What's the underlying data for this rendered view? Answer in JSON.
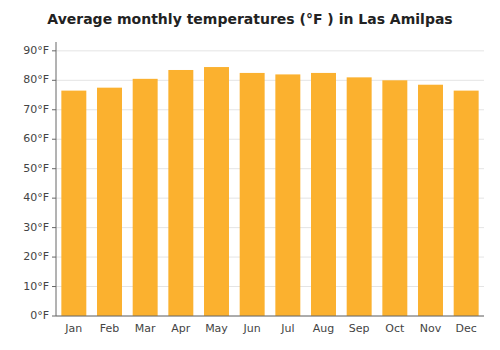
{
  "chart_data": {
    "type": "bar",
    "title": "Average monthly temperatures (°F ) in Las Amilpas",
    "categories": [
      "Jan",
      "Feb",
      "Mar",
      "Apr",
      "May",
      "Jun",
      "Jul",
      "Aug",
      "Sep",
      "Oct",
      "Nov",
      "Dec"
    ],
    "values": [
      76.5,
      77.5,
      80.5,
      83.5,
      84.5,
      82.5,
      82.0,
      82.5,
      81.0,
      80.0,
      78.5,
      76.5
    ],
    "color": "#FBB12F",
    "ylim": [
      0,
      93
    ],
    "yticks": [
      {
        "value": 0,
        "label": "0°F"
      },
      {
        "value": 10,
        "label": "10°F"
      },
      {
        "value": 20,
        "label": "20°F"
      },
      {
        "value": 30,
        "label": "30°F"
      },
      {
        "value": 40,
        "label": "40°F"
      },
      {
        "value": 50,
        "label": "50°F"
      },
      {
        "value": 60,
        "label": "60°F"
      },
      {
        "value": 70,
        "label": "70°F"
      },
      {
        "value": 80,
        "label": "80°F"
      },
      {
        "value": 90,
        "label": "90°F"
      }
    ],
    "grid": true
  }
}
